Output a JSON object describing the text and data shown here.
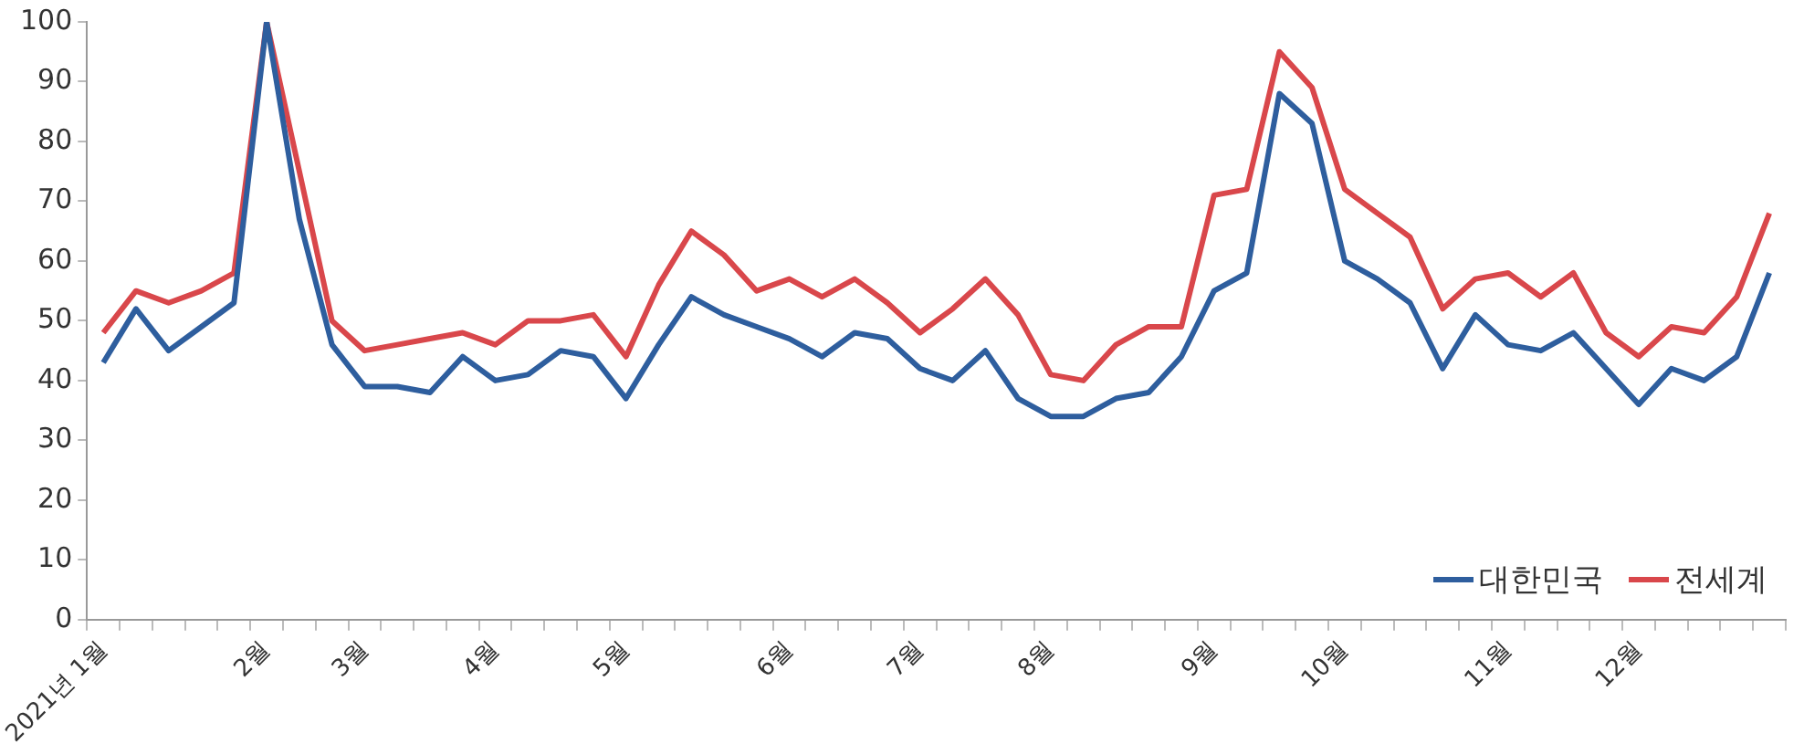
{
  "chart_data": {
    "type": "line",
    "categories": [
      "2021년 1월",
      null,
      null,
      null,
      null,
      "2월",
      null,
      null,
      "3월",
      null,
      null,
      null,
      "4월",
      null,
      null,
      null,
      "5월",
      null,
      null,
      null,
      null,
      "6월",
      null,
      null,
      null,
      "7월",
      null,
      null,
      null,
      "8월",
      null,
      null,
      null,
      null,
      "9월",
      null,
      null,
      null,
      "10월",
      null,
      null,
      null,
      null,
      "11월",
      null,
      null,
      null,
      "12월",
      null,
      null,
      null,
      null
    ],
    "series": [
      {
        "name": "대한민국",
        "color": "#2e5e9e",
        "values": [
          43,
          52,
          45,
          49,
          53,
          100,
          67,
          46,
          39,
          39,
          38,
          44,
          40,
          41,
          45,
          44,
          37,
          46,
          54,
          51,
          49,
          47,
          44,
          48,
          47,
          42,
          40,
          45,
          37,
          34,
          34,
          37,
          38,
          44,
          55,
          58,
          88,
          83,
          60,
          57,
          53,
          42,
          51,
          46,
          45,
          48,
          42,
          36,
          42,
          40,
          44,
          58
        ]
      },
      {
        "name": "전세계",
        "color": "#d9474b",
        "values": [
          48,
          55,
          53,
          55,
          58,
          100,
          75,
          50,
          45,
          46,
          47,
          48,
          46,
          50,
          50,
          51,
          44,
          56,
          65,
          61,
          55,
          57,
          54,
          57,
          53,
          48,
          52,
          57,
          51,
          41,
          40,
          46,
          49,
          49,
          71,
          72,
          95,
          89,
          72,
          68,
          64,
          52,
          57,
          58,
          54,
          58,
          48,
          44,
          49,
          48,
          54,
          68
        ]
      }
    ],
    "ylim": [
      0,
      100
    ],
    "yticks": [
      0,
      10,
      20,
      30,
      40,
      50,
      60,
      70,
      80,
      90,
      100
    ],
    "grid": false,
    "legend": "bottom right",
    "marker": "none",
    "line_style": "solid"
  }
}
